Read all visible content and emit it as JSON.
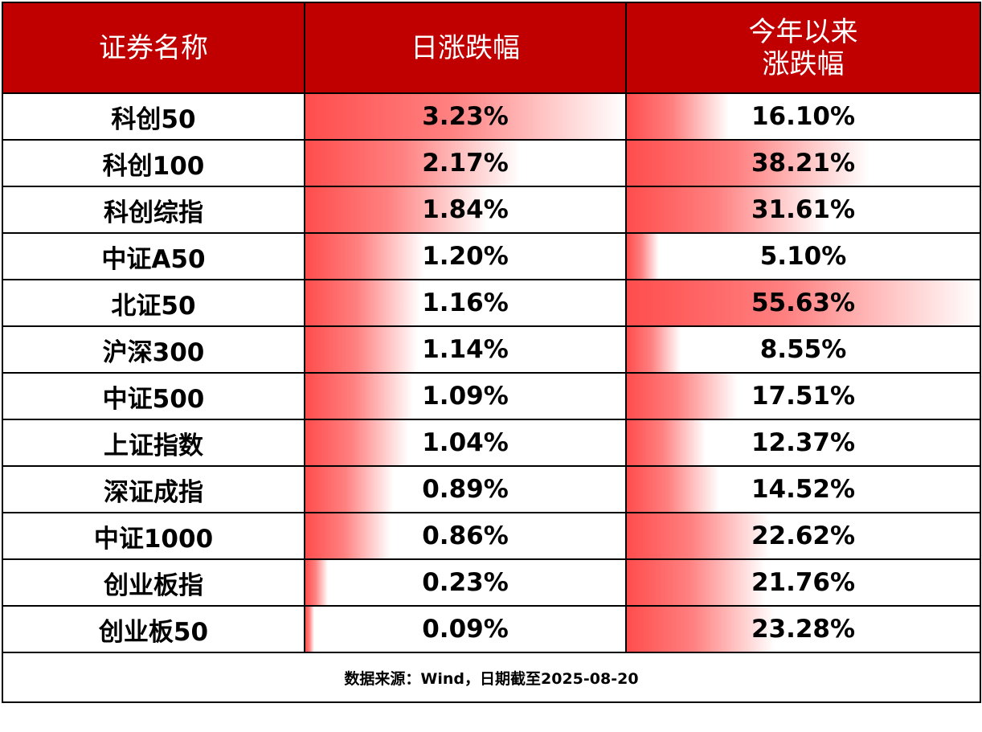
{
  "header": {
    "col_name": "证券名称",
    "col_daily": "日涨跌幅",
    "col_ytd_line1": "今年以来",
    "col_ytd_line2": "涨跌幅"
  },
  "rows": [
    {
      "name": "科创50",
      "daily": "3.23%",
      "daily_value": 3.23,
      "ytd": "16.10%",
      "ytd_value": 16.1
    },
    {
      "name": "科创100",
      "daily": "2.17%",
      "daily_value": 2.17,
      "ytd": "38.21%",
      "ytd_value": 38.21
    },
    {
      "name": "科创综指",
      "daily": "1.84%",
      "daily_value": 1.84,
      "ytd": "31.61%",
      "ytd_value": 31.61
    },
    {
      "name": "中证A50",
      "daily": "1.20%",
      "daily_value": 1.2,
      "ytd": "5.10%",
      "ytd_value": 5.1
    },
    {
      "name": "北证50",
      "daily": "1.16%",
      "daily_value": 1.16,
      "ytd": "55.63%",
      "ytd_value": 55.63
    },
    {
      "name": "沪深300",
      "daily": "1.14%",
      "daily_value": 1.14,
      "ytd": "8.55%",
      "ytd_value": 8.55
    },
    {
      "name": "中证500",
      "daily": "1.09%",
      "daily_value": 1.09,
      "ytd": "17.51%",
      "ytd_value": 17.51
    },
    {
      "name": "上证指数",
      "daily": "1.04%",
      "daily_value": 1.04,
      "ytd": "12.37%",
      "ytd_value": 12.37
    },
    {
      "name": "深证成指",
      "daily": "0.89%",
      "daily_value": 0.89,
      "ytd": "14.52%",
      "ytd_value": 14.52
    },
    {
      "name": "中证1000",
      "daily": "0.86%",
      "daily_value": 0.86,
      "ytd": "22.62%",
      "ytd_value": 22.62
    },
    {
      "name": "创业板指",
      "daily": "0.23%",
      "daily_value": 0.23,
      "ytd": "21.76%",
      "ytd_value": 21.76
    },
    {
      "name": "创业板50",
      "daily": "0.09%",
      "daily_value": 0.09,
      "ytd": "23.28%",
      "ytd_value": 23.28
    }
  ],
  "source_note": "数据来源：Wind，日期截至2025-08-20",
  "colors": {
    "header_bg": "#c00000",
    "header_text": "#ffffff",
    "bar_color": "#ff4d4d",
    "border": "#000000"
  }
}
